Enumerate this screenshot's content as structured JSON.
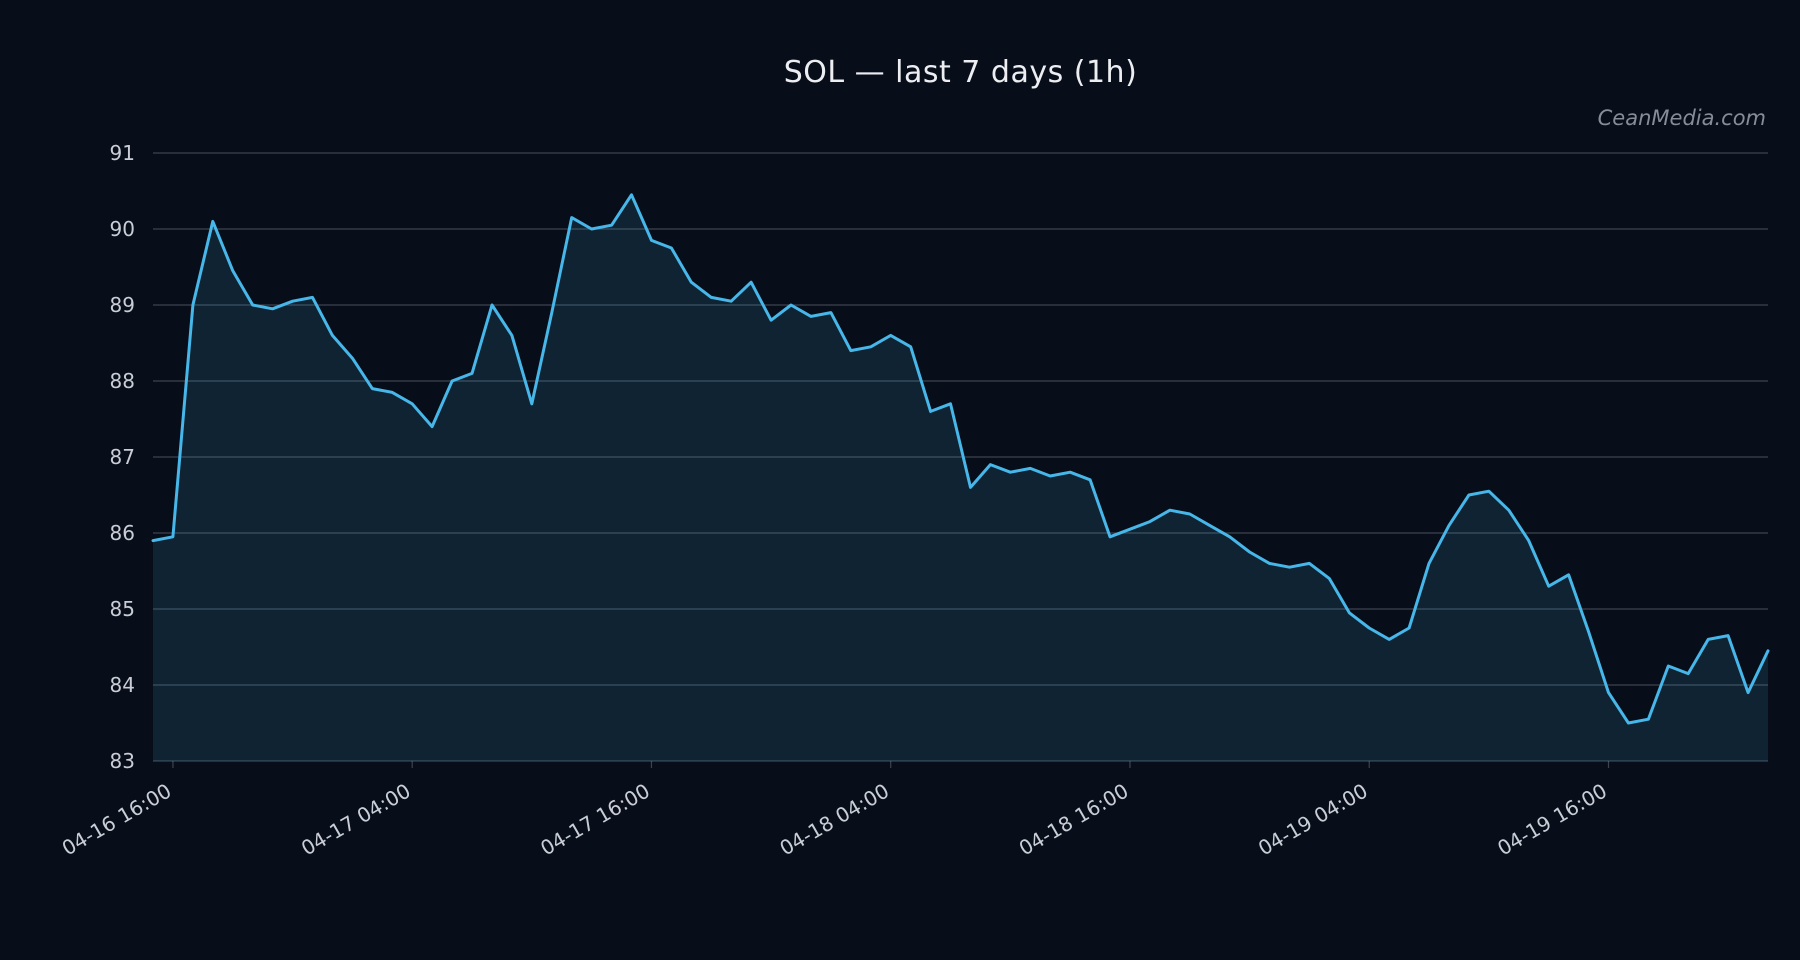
{
  "title": "SOL — last 7 days (1h)",
  "watermark": "CeanMedia.com",
  "chart_data": {
    "type": "area",
    "title": "SOL — last 7 days (1h)",
    "xlabel": "",
    "ylabel": "",
    "grid": true,
    "legend": "none",
    "ylim": [
      83,
      91
    ],
    "y_ticks": [
      83,
      84,
      85,
      86,
      87,
      88,
      89,
      90,
      91
    ],
    "x_tick_labels": [
      "04-16 16:00",
      "04-17 04:00",
      "04-17 16:00",
      "04-18 04:00",
      "04-18 16:00",
      "04-19 04:00",
      "04-19 16:00"
    ],
    "x_tick_indices": [
      1,
      13,
      25,
      37,
      49,
      61,
      73
    ],
    "x_unit": "1 hour per point",
    "n_points": 82,
    "series": [
      {
        "name": "SOL",
        "values": [
          85.9,
          85.95,
          89.0,
          90.1,
          89.45,
          89.0,
          88.95,
          89.05,
          89.1,
          88.6,
          88.3,
          87.9,
          87.85,
          87.7,
          87.4,
          88.0,
          88.1,
          89.0,
          88.6,
          87.7,
          88.9,
          90.15,
          90.0,
          90.05,
          90.45,
          89.85,
          89.75,
          89.3,
          89.1,
          89.05,
          89.3,
          88.8,
          89.0,
          88.85,
          88.9,
          88.4,
          88.45,
          88.6,
          88.45,
          87.6,
          87.7,
          86.6,
          86.9,
          86.8,
          86.85,
          86.75,
          86.8,
          86.7,
          85.95,
          86.05,
          86.15,
          86.3,
          86.25,
          86.1,
          85.95,
          85.75,
          85.6,
          85.55,
          85.6,
          85.4,
          84.95,
          84.75,
          84.6,
          84.75,
          85.6,
          86.1,
          86.5,
          86.55,
          86.3,
          85.9,
          85.3,
          85.45,
          84.7,
          83.9,
          83.5,
          83.55,
          84.25,
          84.15,
          84.6,
          84.65,
          83.9,
          84.45
        ]
      }
    ],
    "colors": {
      "background": "#070d19",
      "line": "#47b6e9",
      "fill": "rgba(70,182,233,0.13)",
      "grid": "rgba(197,203,214,0.28)",
      "tick_text": "#c9cdd6",
      "title_text": "#eceef2",
      "watermark_text": "#878d98"
    }
  }
}
